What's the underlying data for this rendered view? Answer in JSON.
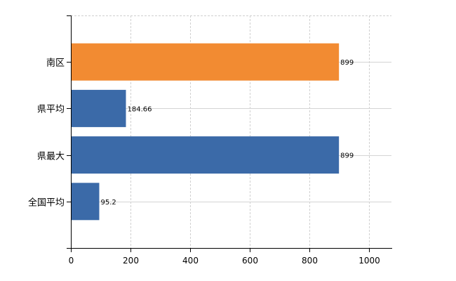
{
  "chart_data": {
    "type": "bar",
    "orientation": "horizontal",
    "categories": [
      "南区",
      "県平均",
      "県最大",
      "全国平均"
    ],
    "values": [
      899,
      184.66,
      899,
      95.2
    ],
    "data_labels": [
      "899",
      "184.66",
      "899",
      "95.2"
    ],
    "bar_colors": [
      "#f28b32",
      "#3b6aa8",
      "#3b6aa8",
      "#3b6aa8"
    ],
    "title": "",
    "xlabel": "",
    "ylabel": "",
    "xlim": [
      0,
      1075
    ],
    "x_ticks": [
      0,
      200,
      400,
      600,
      800,
      1000
    ],
    "x_tick_labels": [
      "0",
      "200",
      "400",
      "600",
      "800",
      "1000"
    ],
    "grid": true,
    "legend": "none"
  }
}
